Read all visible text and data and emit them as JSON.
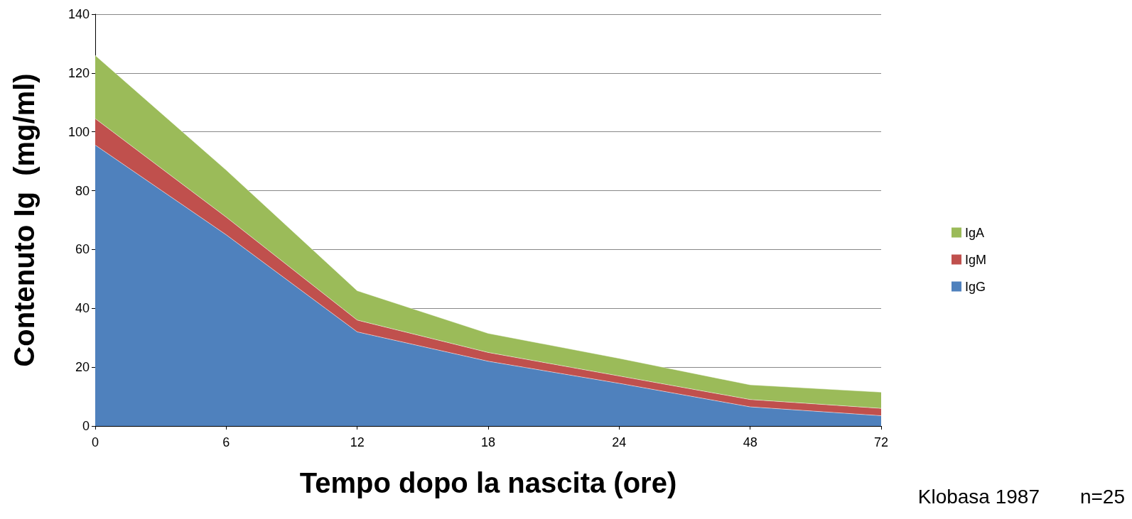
{
  "chart_data": {
    "type": "area",
    "stacked": true,
    "xlabel": "Tempo dopo la nascita (ore)",
    "ylabel": "Contenuto Ig  (mg/ml)",
    "categories": [
      "0",
      "6",
      "12",
      "18",
      "24",
      "48",
      "72"
    ],
    "series": [
      {
        "name": "IgG",
        "color": "#4f81bd",
        "values": [
          95.5,
          65,
          32,
          22,
          14.5,
          6.5,
          3.5
        ]
      },
      {
        "name": "IgM",
        "color": "#c0504d",
        "values": [
          9,
          6,
          4,
          3,
          2.5,
          2.5,
          2.5
        ]
      },
      {
        "name": "IgA",
        "color": "#9bbb59",
        "values": [
          21.5,
          16,
          10,
          6.5,
          6,
          5,
          5.5
        ]
      }
    ],
    "ylim": [
      0,
      140
    ],
    "yticks": [
      0,
      20,
      40,
      60,
      80,
      100,
      120,
      140
    ],
    "grid": "y",
    "legend": "right",
    "annotations": [
      "Klobasa 1987",
      "n=25"
    ]
  }
}
